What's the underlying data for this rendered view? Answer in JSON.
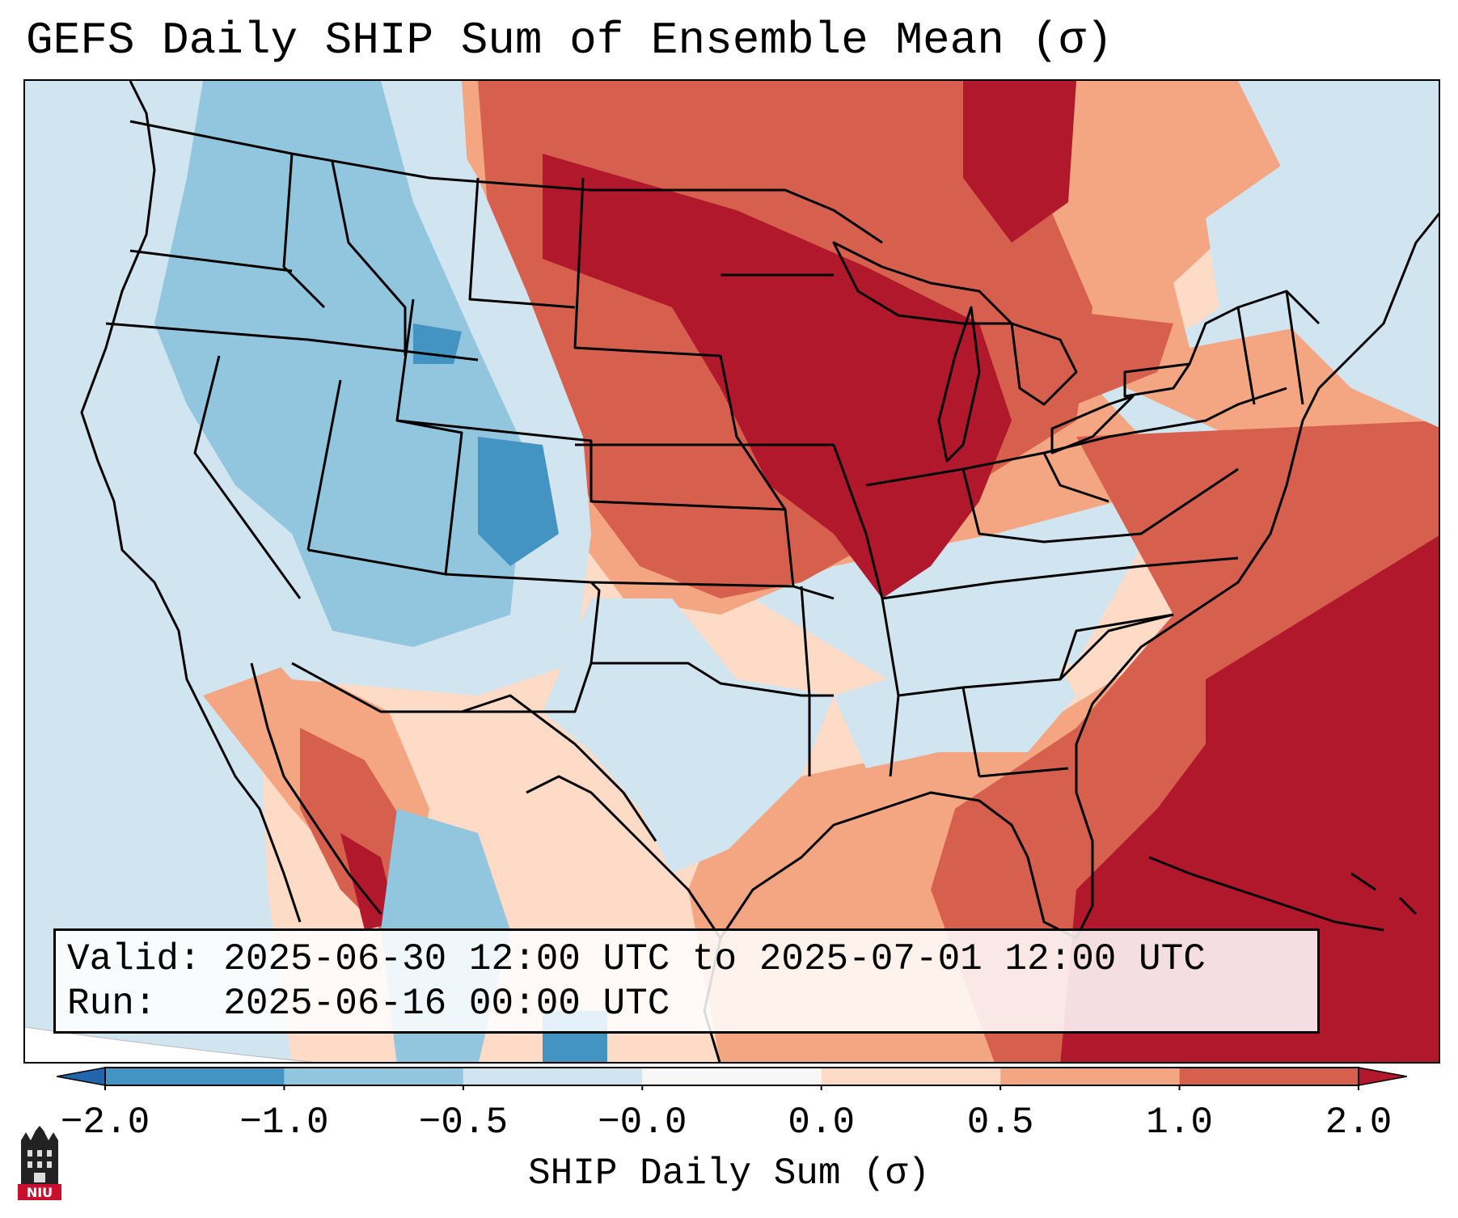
{
  "title": "GEFS Daily SHIP Sum of Ensemble Mean (σ)",
  "info": {
    "valid_line": "Valid: 2025-06-30 12:00 UTC to 2025-07-01 12:00 UTC",
    "run_line": "Run:   2025-06-16 00:00 UTC"
  },
  "colorbar": {
    "label": "SHIP Daily Sum (σ)",
    "ticks": [
      "−2.0",
      "−1.0",
      "−0.5",
      "−0.0",
      "0.0",
      "0.5",
      "1.0",
      "2.0"
    ],
    "colors": [
      "#4393c3",
      "#92c5de",
      "#d1e5f0",
      "#f7f7f7",
      "#fddbc7",
      "#f4a582",
      "#d6604d",
      "#b2182b"
    ],
    "extend_low_color": "#2166ac",
    "extend_high_color": "#b2182b"
  },
  "map": {
    "ocean_color": "#d1e5f0",
    "border_color": "#000000"
  },
  "logo": {
    "text": "NIU",
    "color": "#c8102e"
  }
}
